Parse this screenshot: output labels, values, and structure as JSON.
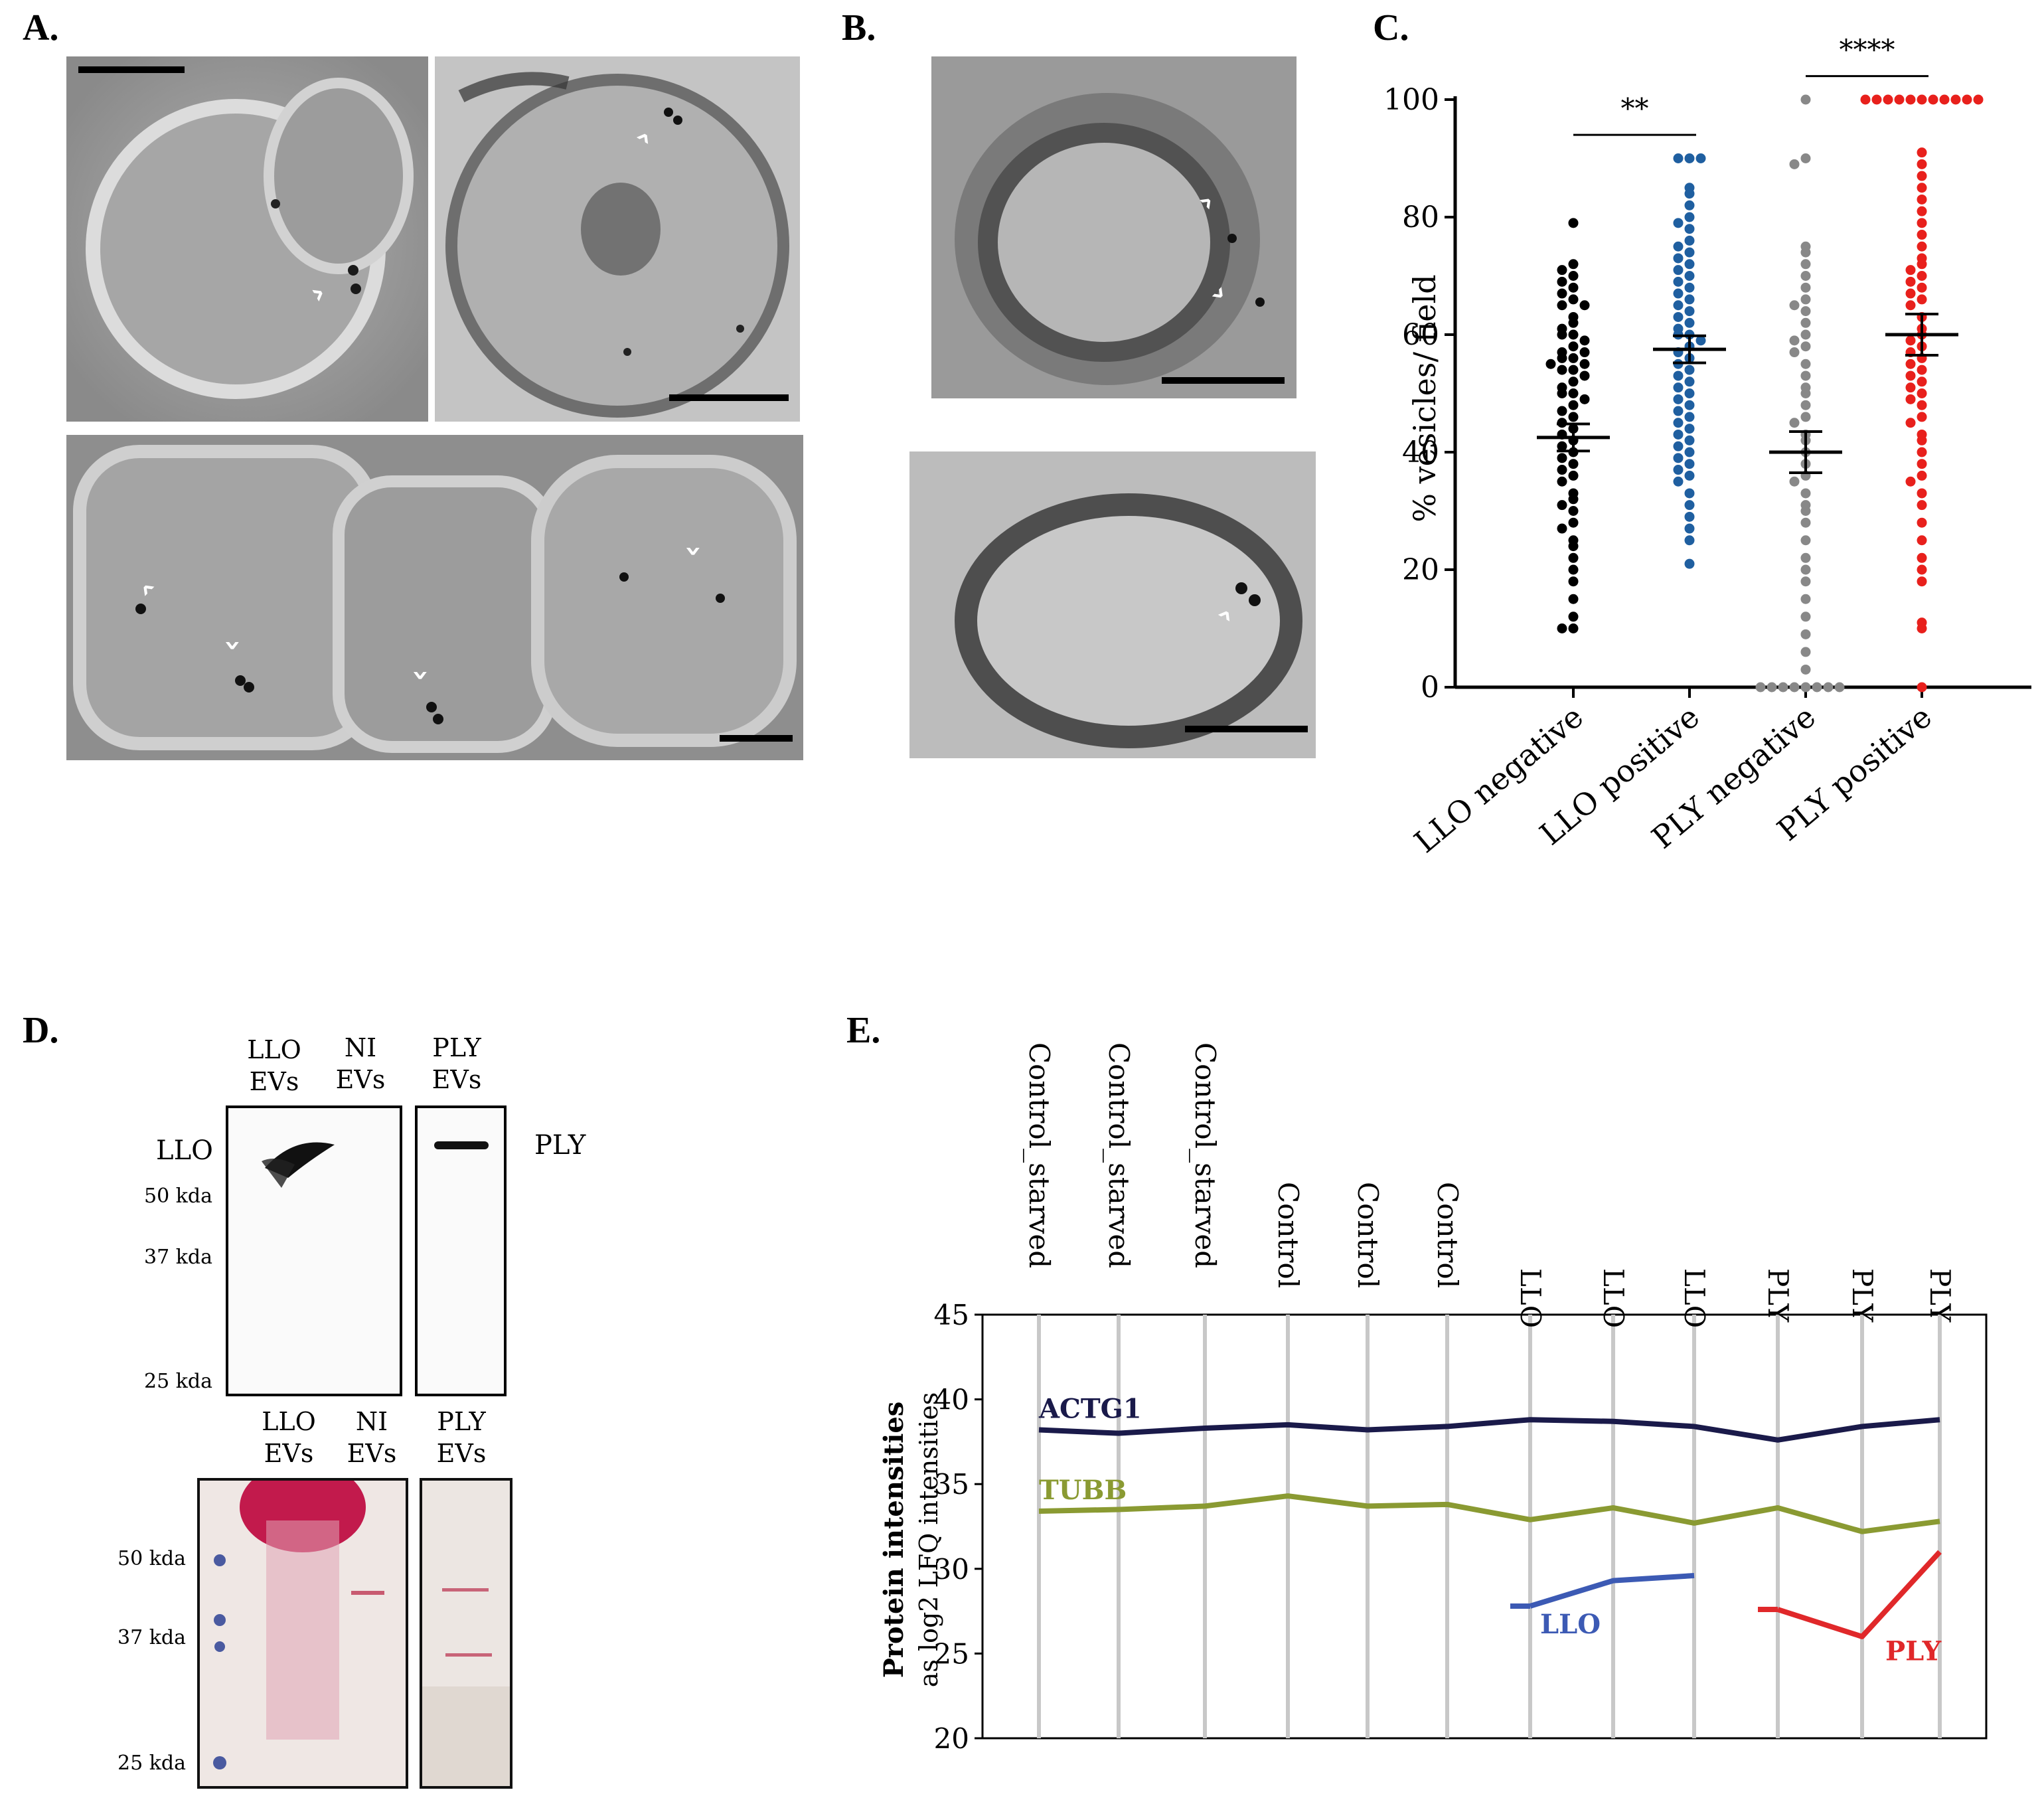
{
  "panels": {
    "A": "A.",
    "B": "B.",
    "C": "C.",
    "D": "D.",
    "E": "E."
  },
  "chart_data": [
    {
      "type": "scatter",
      "panel": "C",
      "ylabel": "% vesicles/ field",
      "ylim": [
        0,
        100
      ],
      "yticks": [
        "0",
        "20",
        "40",
        "60",
        "80",
        "100"
      ],
      "categories": [
        "LLO negative",
        "LLO positive",
        "PLY negative",
        "PLY positive"
      ],
      "colors": [
        "#000000",
        "#1f5fa0",
        "#888888",
        "#e8201c"
      ],
      "means": [
        42.5,
        57.5,
        40,
        60
      ],
      "sem": [
        2.3,
        2.3,
        3.5,
        3.5
      ],
      "points": [
        [
          79,
          72,
          71,
          70,
          69,
          68,
          67,
          66,
          65,
          65,
          63,
          62,
          61,
          60,
          60,
          59,
          58,
          57,
          57,
          56,
          56,
          55,
          55,
          54,
          54,
          53,
          52,
          51,
          50,
          50,
          49,
          48,
          47,
          46,
          45,
          44,
          43,
          42,
          41,
          40,
          39,
          38,
          37,
          36,
          35,
          33,
          32,
          31,
          30,
          28,
          27,
          25,
          24,
          22,
          20,
          18,
          15,
          12,
          10,
          10
        ],
        [
          90,
          90,
          90,
          85,
          84,
          82,
          80,
          79,
          78,
          76,
          75,
          74,
          73,
          72,
          71,
          70,
          69,
          68,
          67,
          66,
          65,
          64,
          63,
          62,
          61,
          60,
          60,
          59,
          58,
          57,
          56,
          55,
          54,
          53,
          52,
          51,
          50,
          49,
          48,
          47,
          46,
          45,
          44,
          43,
          42,
          41,
          40,
          39,
          38,
          37,
          36,
          35,
          33,
          31,
          29,
          27,
          25,
          21
        ],
        [
          100,
          90,
          89,
          75,
          74,
          72,
          70,
          68,
          66,
          65,
          64,
          62,
          60,
          59,
          58,
          57,
          55,
          53,
          51,
          50,
          48,
          46,
          45,
          43,
          42,
          40,
          38,
          36,
          35,
          33,
          31,
          30,
          28,
          25,
          22,
          20,
          18,
          15,
          12,
          9,
          6,
          3,
          0,
          0,
          0,
          0,
          0,
          0,
          0,
          0
        ],
        [
          100,
          100,
          100,
          100,
          100,
          100,
          100,
          100,
          100,
          100,
          100,
          91,
          89,
          87,
          85,
          83,
          81,
          79,
          77,
          75,
          73,
          72,
          71,
          70,
          69,
          68,
          67,
          66,
          65,
          63,
          61,
          60,
          59,
          58,
          57,
          56,
          55,
          54,
          53,
          52,
          51,
          50,
          49,
          48,
          46,
          45,
          43,
          42,
          40,
          38,
          36,
          35,
          33,
          31,
          28,
          25,
          22,
          20,
          18,
          11,
          10,
          0
        ]
      ],
      "significance": [
        {
          "label": "**",
          "from": 0,
          "to": 1,
          "y": 94
        },
        {
          "label": "****",
          "from": 2,
          "to": 3,
          "y": 104
        }
      ]
    },
    {
      "type": "line",
      "panel": "E",
      "ylabel": "Protein intensities",
      "ylabel2": "as log2 LFQ intensities",
      "ylim": [
        20,
        45
      ],
      "yticks": [
        "20",
        "25",
        "30",
        "35",
        "40",
        "45"
      ],
      "x": [
        "Control_starved",
        "Control_starved",
        "Control_starved",
        "Control",
        "Control",
        "Control",
        "LLO",
        "LLO",
        "LLO",
        "PLY",
        "PLY",
        "PLY"
      ],
      "series": [
        {
          "name": "ACTG1",
          "color": "#1a1a4a",
          "values": [
            38.2,
            38.0,
            38.3,
            38.5,
            38.2,
            38.4,
            38.8,
            38.7,
            38.4,
            37.6,
            38.4,
            38.8
          ]
        },
        {
          "name": "TUBB",
          "color": "#8a9a32",
          "values": [
            33.4,
            33.5,
            33.7,
            34.3,
            33.7,
            33.8,
            32.9,
            33.6,
            32.7,
            33.6,
            32.2,
            32.8
          ]
        },
        {
          "name": "LLO",
          "color": "#3c5ab4",
          "values": [
            null,
            null,
            null,
            null,
            null,
            null,
            27.8,
            29.3,
            29.6,
            null,
            null,
            null
          ]
        },
        {
          "name": "PLY",
          "color": "#e0282a",
          "values": [
            null,
            null,
            null,
            null,
            null,
            null,
            null,
            null,
            null,
            27.6,
            26.0,
            31.0
          ]
        }
      ]
    }
  ],
  "blot": {
    "top_labels": [
      {
        "line1": "LLO",
        "line2": "EVs"
      },
      {
        "line1": "NI",
        "line2": "EVs"
      },
      {
        "line1": "PLY",
        "line2": "EVs"
      }
    ],
    "band_left": "LLO",
    "band_right": "PLY",
    "markers_top": [
      "50 kda",
      "37 kda",
      "25 kda"
    ],
    "bottom_labels": [
      {
        "line1": "LLO",
        "line2": "EVs"
      },
      {
        "line1": "NI",
        "line2": "EVs"
      },
      {
        "line1": "PLY",
        "line2": "EVs"
      }
    ],
    "markers_bottom": [
      "50 kda",
      "37 kda",
      "25 kda"
    ]
  }
}
